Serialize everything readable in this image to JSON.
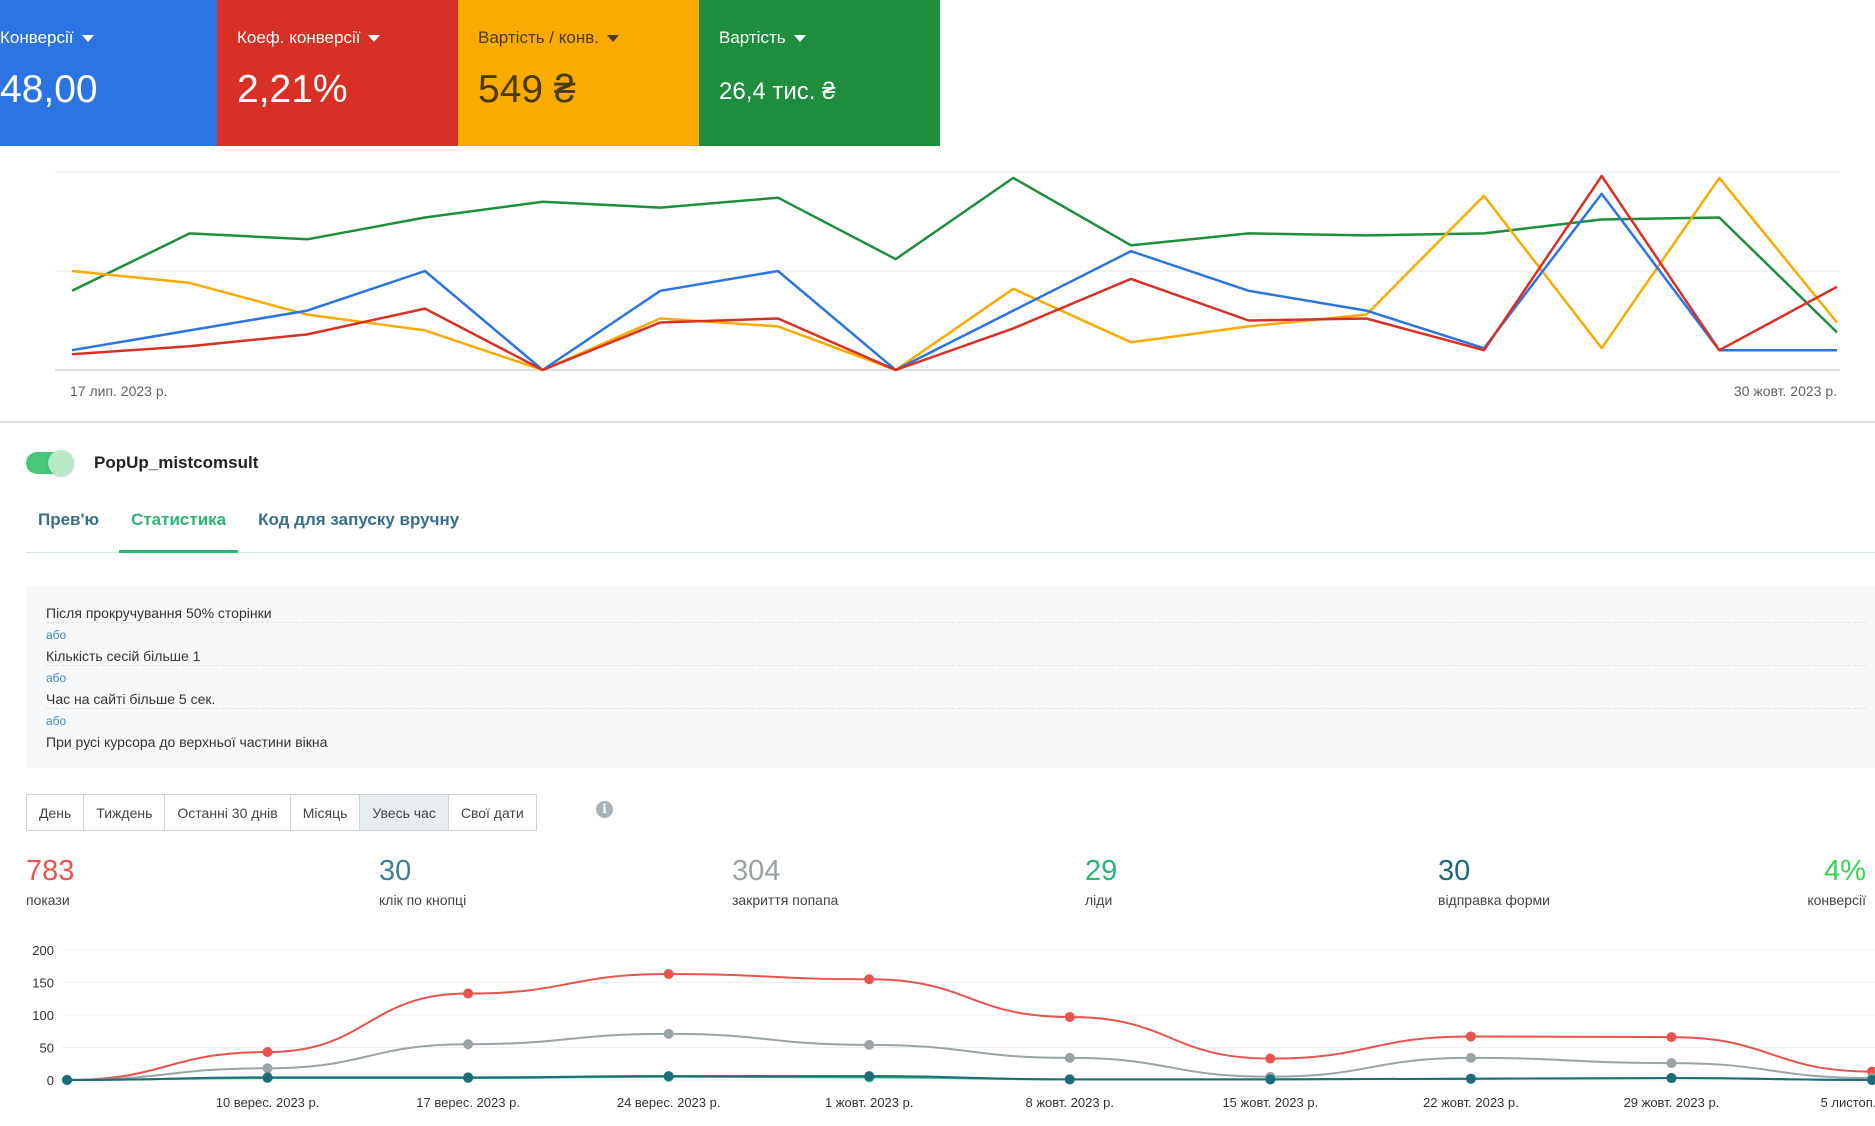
{
  "kpis": [
    {
      "label": "Конверсії",
      "value": "48,00",
      "color": "#2b74e2"
    },
    {
      "label": "Коеф. конверсії",
      "value": "2,21%",
      "color": "#d93025"
    },
    {
      "label": "Вартість / конв.",
      "value": "549 ₴",
      "color": "#f9ab00"
    },
    {
      "label": "Вартість",
      "value": "26,4 тис. ₴",
      "color": "#1e8e3e"
    }
  ],
  "top_chart": {
    "x_start_label": "17 лип. 2023 р.",
    "x_end_label": "30 жовт. 2023 р."
  },
  "popup": {
    "name": "PopUp_mistcomsult",
    "enabled": true
  },
  "tabs": [
    "Прев'ю",
    "Статистика",
    "Код для запуску вручну"
  ],
  "active_tab": "Статистика",
  "conditions": {
    "items": [
      "Після прокручування 50% сторінки",
      "Кількість сесій більше 1",
      "Час на сайті більше 5 сек.",
      "При русі курсора до верхньої частини вікна"
    ],
    "separator": "або"
  },
  "range_buttons": [
    "День",
    "Тиждень",
    "Останні 30 днів",
    "Місяць",
    "Увесь час",
    "Свої дати"
  ],
  "active_range": "Увесь час",
  "info_icon": "i",
  "stats": [
    {
      "value": "783",
      "label": "покази",
      "color": "#e8534d"
    },
    {
      "value": "30",
      "label": "клік по кнопці",
      "color": "#3f7f9a"
    },
    {
      "value": "304",
      "label": "закриття попапа",
      "color": "#9aa3a5"
    },
    {
      "value": "29",
      "label": "ліди",
      "color": "#2bb673"
    },
    {
      "value": "30",
      "label": "відправка форми",
      "color": "#1d6c79"
    },
    {
      "value": "4%",
      "label": "конверсії",
      "color": "#39d353"
    }
  ],
  "chart_data": [
    {
      "type": "line",
      "title": "",
      "x_labels": [
        "17 лип. 2023 р.",
        "30 жовт. 2023 р."
      ],
      "y_gridlines": 3,
      "series": [
        {
          "color": "#1e8e3e",
          "values": [
            0.4,
            0.69,
            0.66,
            0.77,
            0.85,
            0.82,
            0.87,
            0.56,
            0.97,
            0.63,
            0.69,
            0.68,
            0.69,
            0.76,
            0.77,
            0.19
          ]
        },
        {
          "color": "#f9ab00",
          "values": [
            0.5,
            0.44,
            0.28,
            0.2,
            0.0,
            0.26,
            0.22,
            0.0,
            0.41,
            0.14,
            0.22,
            0.28,
            0.88,
            0.11,
            0.97,
            0.24
          ]
        },
        {
          "color": "#2b74e2",
          "values": [
            0.1,
            0.2,
            0.3,
            0.5,
            0.0,
            0.4,
            0.5,
            0.0,
            0.3,
            0.6,
            0.4,
            0.3,
            0.11,
            0.89,
            0.1,
            0.1
          ]
        },
        {
          "color": "#d93025",
          "values": [
            0.08,
            0.12,
            0.18,
            0.31,
            0.0,
            0.24,
            0.26,
            0.0,
            0.21,
            0.46,
            0.25,
            0.26,
            0.1,
            0.98,
            0.1,
            0.42
          ]
        }
      ]
    },
    {
      "type": "line",
      "title": "",
      "x": [
        "",
        "10 верес. 2023 р.",
        "17 верес. 2023 р.",
        "24 верес. 2023 р.",
        "1 жовт. 2023 р.",
        "8 жовт. 2023 р.",
        "15 жовт. 2023 р.",
        "22 жовт. 2023 р.",
        "29 жовт. 2023 р.",
        "5 листоп. 2023 р."
      ],
      "y_ticks": [
        0,
        50,
        100,
        150,
        200
      ],
      "ylim": [
        0,
        200
      ],
      "series": [
        {
          "name": "покази",
          "color": "#e8534d",
          "values": [
            0,
            43,
            133,
            163,
            155,
            97,
            33,
            67,
            66,
            13
          ]
        },
        {
          "name": "закриття попапа",
          "color": "#9aa3a5",
          "values": [
            0,
            18,
            55,
            71,
            54,
            34,
            5,
            34,
            26,
            3
          ]
        },
        {
          "name": "ліди",
          "color": "#2bb673",
          "values": [
            0,
            3,
            3,
            5,
            4,
            1,
            1,
            2,
            3,
            0
          ]
        },
        {
          "name": "відправка форми",
          "color": "#1d6c79",
          "values": [
            0,
            4,
            4,
            6,
            6,
            1,
            1,
            2,
            3,
            0
          ]
        }
      ]
    }
  ]
}
